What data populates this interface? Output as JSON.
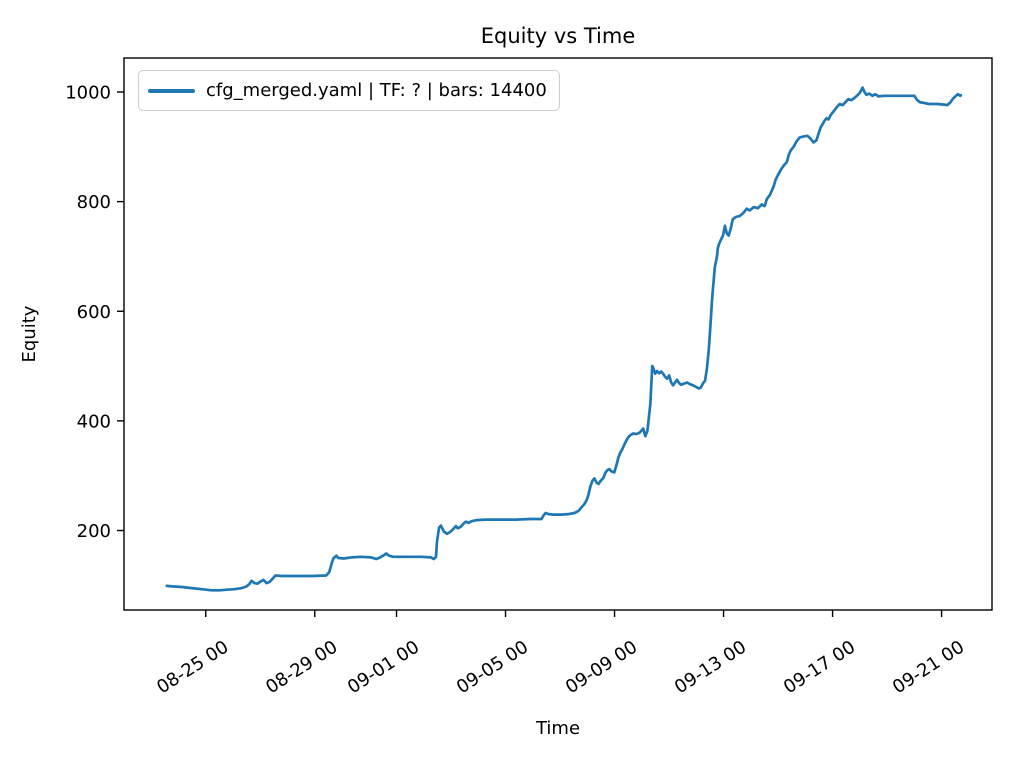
{
  "chart_data": {
    "type": "line",
    "title": "Equity vs Time",
    "xlabel": "Time",
    "ylabel": "Equity",
    "line_color": "#1f77b4",
    "frame_color": "#000000",
    "legend": {
      "position": "upper left",
      "entries": [
        {
          "label": "cfg_merged.yaml | TF: ? | bars: 14400",
          "color": "#1f77b4"
        }
      ]
    },
    "x_unit": "days since 08-25 00:00",
    "x_ticks": [
      {
        "label": "08-25 00",
        "day": 0
      },
      {
        "label": "08-29 00",
        "day": 4
      },
      {
        "label": "09-01 00",
        "day": 7
      },
      {
        "label": "09-05 00",
        "day": 11
      },
      {
        "label": "09-09 00",
        "day": 15
      },
      {
        "label": "09-13 00",
        "day": 19
      },
      {
        "label": "09-17 00",
        "day": 23
      },
      {
        "label": "09-21 00",
        "day": 27
      }
    ],
    "y_ticks": [
      200,
      400,
      600,
      800,
      1000
    ],
    "xlim": [
      -3.0,
      28.85
    ],
    "ylim": [
      55,
      1062
    ],
    "grid": false,
    "series": [
      {
        "name": "cfg_merged.yaml | TF: ? | bars: 14400",
        "color": "#1f77b4",
        "points": [
          [
            -1.43,
            99
          ],
          [
            -1.24,
            98
          ],
          [
            -0.88,
            97
          ],
          [
            -0.51,
            95
          ],
          [
            -0.15,
            93
          ],
          [
            0.22,
            91
          ],
          [
            0.51,
            91
          ],
          [
            0.77,
            92
          ],
          [
            1.06,
            93
          ],
          [
            1.32,
            95
          ],
          [
            1.5,
            98
          ],
          [
            1.61,
            103
          ],
          [
            1.68,
            108
          ],
          [
            1.79,
            104
          ],
          [
            1.9,
            103
          ],
          [
            2.01,
            107
          ],
          [
            2.12,
            110
          ],
          [
            2.23,
            104
          ],
          [
            2.34,
            106
          ],
          [
            2.45,
            112
          ],
          [
            2.56,
            118
          ],
          [
            2.78,
            117
          ],
          [
            3.33,
            117
          ],
          [
            3.88,
            117
          ],
          [
            4.42,
            118
          ],
          [
            4.53,
            124
          ],
          [
            4.61,
            138
          ],
          [
            4.68,
            149
          ],
          [
            4.79,
            154
          ],
          [
            4.86,
            150
          ],
          [
            5.05,
            149
          ],
          [
            5.34,
            151
          ],
          [
            5.7,
            152
          ],
          [
            6.07,
            151
          ],
          [
            6.25,
            148
          ],
          [
            6.36,
            150
          ],
          [
            6.54,
            155
          ],
          [
            6.62,
            158
          ],
          [
            6.73,
            154
          ],
          [
            6.87,
            152
          ],
          [
            7.35,
            152
          ],
          [
            7.9,
            152
          ],
          [
            8.26,
            151
          ],
          [
            8.37,
            148
          ],
          [
            8.45,
            152
          ],
          [
            8.48,
            178
          ],
          [
            8.56,
            205
          ],
          [
            8.63,
            209
          ],
          [
            8.74,
            198
          ],
          [
            8.85,
            194
          ],
          [
            8.96,
            197
          ],
          [
            9.07,
            202
          ],
          [
            9.18,
            208
          ],
          [
            9.25,
            204
          ],
          [
            9.36,
            207
          ],
          [
            9.47,
            213
          ],
          [
            9.54,
            216
          ],
          [
            9.65,
            214
          ],
          [
            9.76,
            217
          ],
          [
            9.95,
            219
          ],
          [
            10.27,
            220
          ],
          [
            10.82,
            220
          ],
          [
            11.37,
            220
          ],
          [
            11.92,
            221
          ],
          [
            12.32,
            221
          ],
          [
            12.4,
            228
          ],
          [
            12.47,
            232
          ],
          [
            12.58,
            230
          ],
          [
            12.76,
            229
          ],
          [
            13.02,
            229
          ],
          [
            13.31,
            230
          ],
          [
            13.53,
            232
          ],
          [
            13.68,
            236
          ],
          [
            13.78,
            242
          ],
          [
            13.89,
            248
          ],
          [
            13.97,
            255
          ],
          [
            14.04,
            265
          ],
          [
            14.11,
            280
          ],
          [
            14.19,
            291
          ],
          [
            14.26,
            295
          ],
          [
            14.33,
            288
          ],
          [
            14.41,
            285
          ],
          [
            14.48,
            290
          ],
          [
            14.59,
            296
          ],
          [
            14.66,
            305
          ],
          [
            14.73,
            310
          ],
          [
            14.81,
            312
          ],
          [
            14.88,
            308
          ],
          [
            14.99,
            306
          ],
          [
            15.07,
            320
          ],
          [
            15.14,
            333
          ],
          [
            15.21,
            342
          ],
          [
            15.28,
            348
          ],
          [
            15.36,
            357
          ],
          [
            15.43,
            364
          ],
          [
            15.5,
            370
          ],
          [
            15.58,
            374
          ],
          [
            15.69,
            377
          ],
          [
            15.8,
            376
          ],
          [
            15.91,
            378
          ],
          [
            15.98,
            382
          ],
          [
            16.05,
            386
          ],
          [
            16.13,
            372
          ],
          [
            16.2,
            381
          ],
          [
            16.24,
            396
          ],
          [
            16.27,
            412
          ],
          [
            16.31,
            430
          ],
          [
            16.34,
            458
          ],
          [
            16.38,
            500
          ],
          [
            16.42,
            497
          ],
          [
            16.49,
            486
          ],
          [
            16.56,
            491
          ],
          [
            16.64,
            487
          ],
          [
            16.71,
            490
          ],
          [
            16.78,
            486
          ],
          [
            16.86,
            480
          ],
          [
            16.93,
            477
          ],
          [
            17.0,
            483
          ],
          [
            17.08,
            470
          ],
          [
            17.15,
            465
          ],
          [
            17.22,
            470
          ],
          [
            17.29,
            475
          ],
          [
            17.37,
            469
          ],
          [
            17.44,
            466
          ],
          [
            17.55,
            468
          ],
          [
            17.66,
            470
          ],
          [
            17.77,
            467
          ],
          [
            17.88,
            465
          ],
          [
            17.99,
            462
          ],
          [
            18.1,
            459
          ],
          [
            18.17,
            461
          ],
          [
            18.25,
            469
          ],
          [
            18.32,
            473
          ],
          [
            18.39,
            495
          ],
          [
            18.46,
            530
          ],
          [
            18.5,
            560
          ],
          [
            18.54,
            590
          ],
          [
            18.57,
            615
          ],
          [
            18.61,
            640
          ],
          [
            18.65,
            663
          ],
          [
            18.68,
            680
          ],
          [
            18.76,
            700
          ],
          [
            18.79,
            715
          ],
          [
            18.83,
            722
          ],
          [
            18.9,
            730
          ],
          [
            18.98,
            738
          ],
          [
            19.05,
            756
          ],
          [
            19.12,
            742
          ],
          [
            19.19,
            738
          ],
          [
            19.27,
            752
          ],
          [
            19.34,
            768
          ],
          [
            19.45,
            772
          ],
          [
            19.6,
            774
          ],
          [
            19.74,
            780
          ],
          [
            19.85,
            787
          ],
          [
            19.96,
            784
          ],
          [
            20.11,
            790
          ],
          [
            20.26,
            788
          ],
          [
            20.4,
            795
          ],
          [
            20.51,
            792
          ],
          [
            20.59,
            805
          ],
          [
            20.7,
            812
          ],
          [
            20.77,
            820
          ],
          [
            20.84,
            828
          ],
          [
            20.91,
            840
          ],
          [
            20.99,
            848
          ],
          [
            21.1,
            858
          ],
          [
            21.21,
            866
          ],
          [
            21.32,
            872
          ],
          [
            21.39,
            885
          ],
          [
            21.46,
            893
          ],
          [
            21.57,
            900
          ],
          [
            21.68,
            910
          ],
          [
            21.79,
            917
          ],
          [
            21.94,
            919
          ],
          [
            22.08,
            920
          ],
          [
            22.19,
            915
          ],
          [
            22.3,
            908
          ],
          [
            22.41,
            912
          ],
          [
            22.49,
            925
          ],
          [
            22.56,
            935
          ],
          [
            22.63,
            941
          ],
          [
            22.71,
            948
          ],
          [
            22.78,
            952
          ],
          [
            22.85,
            950
          ],
          [
            22.93,
            958
          ],
          [
            23.04,
            965
          ],
          [
            23.15,
            972
          ],
          [
            23.26,
            978
          ],
          [
            23.37,
            976
          ],
          [
            23.48,
            982
          ],
          [
            23.58,
            987
          ],
          [
            23.69,
            985
          ],
          [
            23.8,
            989
          ],
          [
            23.91,
            994
          ],
          [
            23.99,
            998
          ],
          [
            24.06,
            1004
          ],
          [
            24.1,
            1008
          ],
          [
            24.17,
            1000
          ],
          [
            24.24,
            995
          ],
          [
            24.35,
            997
          ],
          [
            24.46,
            993
          ],
          [
            24.57,
            996
          ],
          [
            24.68,
            992
          ],
          [
            24.9,
            993
          ],
          [
            25.27,
            993
          ],
          [
            25.63,
            993
          ],
          [
            26.0,
            993
          ],
          [
            26.11,
            985
          ],
          [
            26.22,
            981
          ],
          [
            26.36,
            980
          ],
          [
            26.54,
            978
          ],
          [
            26.84,
            978
          ],
          [
            27.09,
            977
          ],
          [
            27.2,
            976
          ],
          [
            27.31,
            980
          ],
          [
            27.42,
            988
          ],
          [
            27.53,
            993
          ],
          [
            27.6,
            996
          ],
          [
            27.68,
            993
          ],
          [
            27.71,
            994
          ]
        ]
      }
    ]
  }
}
